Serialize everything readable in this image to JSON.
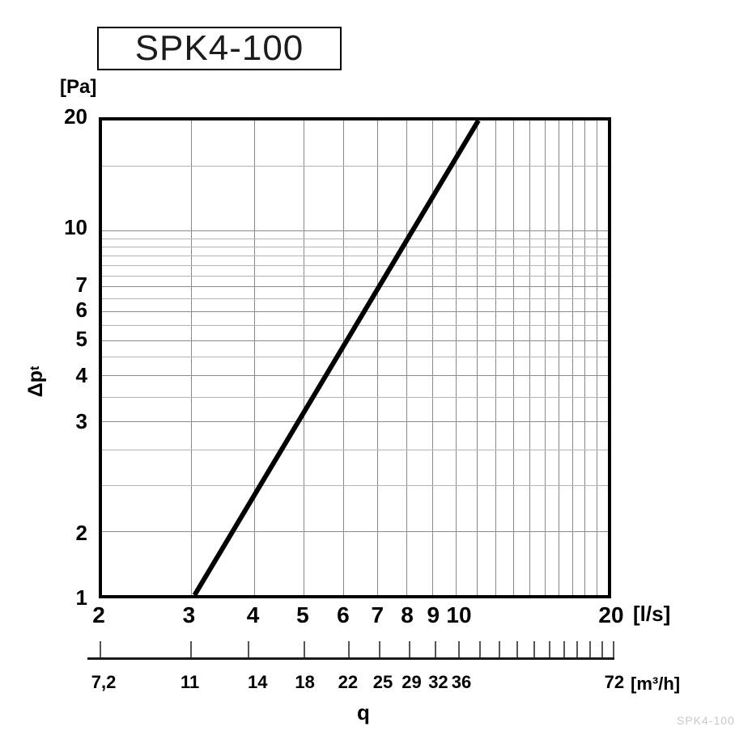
{
  "title_box": {
    "text": "SPK4-100"
  },
  "watermark": "SPK4-100",
  "labels": {
    "y_unit": "[Pa]",
    "x_unit": "[l/s]",
    "secondary_unit": "[m³/h]",
    "flow_symbol": "q",
    "pressure_symbol": "Δp",
    "pressure_symbol_sub": "t"
  },
  "y_ticks": [
    {
      "label": "20",
      "pct": 0
    },
    {
      "label": "10",
      "pct": 23.1
    },
    {
      "label": "7",
      "pct": 35.0
    },
    {
      "label": "6",
      "pct": 40.2
    },
    {
      "label": "5",
      "pct": 46.3
    },
    {
      "label": "4",
      "pct": 53.7
    },
    {
      "label": "3",
      "pct": 63.3
    },
    {
      "label": "2",
      "pct": 86.5
    },
    {
      "label": "1",
      "pct": 100
    }
  ],
  "x_ticks": [
    {
      "label": "2",
      "pct": 0
    },
    {
      "label": "3",
      "pct": 17.6
    },
    {
      "label": "4",
      "pct": 30.1
    },
    {
      "label": "5",
      "pct": 39.8
    },
    {
      "label": "6",
      "pct": 47.7
    },
    {
      "label": "7",
      "pct": 54.4
    },
    {
      "label": "8",
      "pct": 60.2
    },
    {
      "label": "9",
      "pct": 65.3
    },
    {
      "label": "10",
      "pct": 70.3
    },
    {
      "label": "20",
      "pct": 100
    }
  ],
  "grid": {
    "vertical_pct": [
      17.6,
      30.1,
      39.8,
      47.7,
      54.4,
      60.2,
      65.3,
      69.9,
      74.0,
      77.8,
      81.3,
      84.5,
      87.5,
      90.3,
      92.9,
      95.4,
      97.8
    ],
    "horizontal_major_pct": [
      23.1,
      35.0,
      40.2,
      46.3,
      53.7,
      63.3,
      86.5
    ],
    "horizontal_minor_pct": [
      9.6,
      24.9,
      26.6,
      28.5,
      30.5,
      32.7,
      37.5,
      43.1,
      49.8,
      58.2,
      69.4,
      76.9
    ]
  },
  "secondary_axis": {
    "ticks_pct": [
      0,
      17.6,
      28.9,
      39.8,
      48.4,
      54.4,
      60.2,
      65.3,
      69.9,
      74.0,
      77.8,
      81.3,
      84.5,
      87.5,
      90.3,
      92.9,
      95.4,
      97.8,
      100
    ],
    "labels": [
      {
        "text": "7,2",
        "pct": 0.8
      },
      {
        "text": "11",
        "pct": 17.6
      },
      {
        "text": "14",
        "pct": 30.8
      },
      {
        "text": "18",
        "pct": 40.0
      },
      {
        "text": "22",
        "pct": 48.4
      },
      {
        "text": "25",
        "pct": 55.2
      },
      {
        "text": "29",
        "pct": 60.8
      },
      {
        "text": "32",
        "pct": 66.0
      },
      {
        "text": "36",
        "pct": 70.5
      },
      {
        "text": "72",
        "pct": 100.3
      }
    ]
  },
  "curve": {
    "x1_pct": 18.3,
    "y1_pct": 100,
    "x2_pct": 74.4,
    "y2_pct": 0,
    "color": "#000000",
    "stroke_px": 6
  },
  "colors": {
    "frame": "#000000",
    "grid_major": "#8a8a8a",
    "grid_minor": "#b2b2b2",
    "text": "#000000",
    "watermark": "#c9c9c9"
  },
  "chart_data": {
    "type": "line",
    "title": "SPK4-100",
    "xlabel": "q [l/s]",
    "ylabel": "Δpt [Pa]",
    "x_scale": "log",
    "y_scale": "log",
    "xlim": [
      2,
      20
    ],
    "ylim": [
      1,
      20
    ],
    "grid": "on",
    "series": [
      {
        "name": "pressure-drop-curve",
        "points": [
          {
            "q_ls": 3,
            "dp_pa": 1
          },
          {
            "q_ls": 4,
            "dp_pa": 1.9
          },
          {
            "q_ls": 5,
            "dp_pa": 3.2
          },
          {
            "q_ls": 6,
            "dp_pa": 4.8
          },
          {
            "q_ls": 7,
            "dp_pa": 6.9
          },
          {
            "q_ls": 8,
            "dp_pa": 9.3
          },
          {
            "q_ls": 9,
            "dp_pa": 12.2
          },
          {
            "q_ls": 10,
            "dp_pa": 15.5
          },
          {
            "q_ls": 11.2,
            "dp_pa": 20
          }
        ],
        "note": "straight line on log-log axes from (3 l/s, 1 Pa) to (≈11.2 l/s, 20 Pa)"
      }
    ],
    "x_tick_values_ls": [
      2,
      3,
      4,
      5,
      6,
      7,
      8,
      9,
      10,
      20
    ],
    "y_tick_values_pa": [
      1,
      2,
      3,
      4,
      5,
      6,
      7,
      10,
      20
    ],
    "secondary_x_tick_labels_m3h": [
      "7,2",
      "11",
      "14",
      "18",
      "22",
      "25",
      "29",
      "32",
      "36",
      "72"
    ]
  }
}
